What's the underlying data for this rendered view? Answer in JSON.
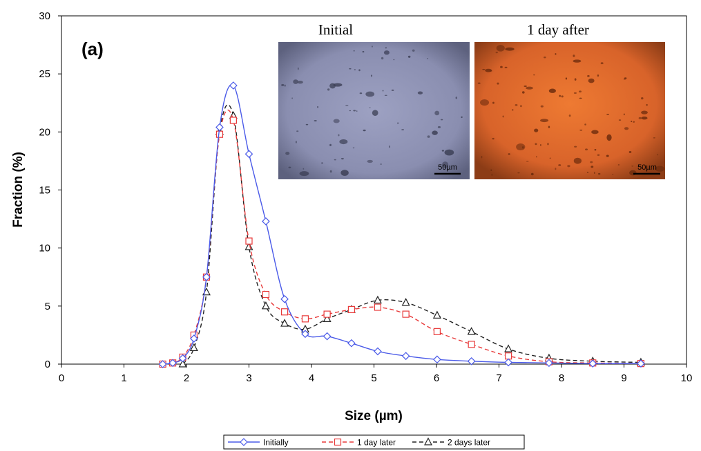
{
  "chart_data": {
    "type": "line",
    "panel_label": "(a)",
    "xlabel": "Size (µm)",
    "ylabel": "Fraction (%)",
    "xlim": [
      0,
      10
    ],
    "ylim": [
      0,
      30
    ],
    "xticks": [
      "0",
      "1",
      "2",
      "3",
      "4",
      "5",
      "6",
      "7",
      "8",
      "9",
      "10"
    ],
    "yticks": [
      "0",
      "5",
      "10",
      "15",
      "20",
      "25",
      "30"
    ],
    "grid": false,
    "legend_position": "bottom",
    "series": [
      {
        "name": "Initially",
        "color": "#4a5ae8",
        "marker": "diamond",
        "line": "solid",
        "x": [
          1.62,
          1.78,
          1.94,
          2.12,
          2.32,
          2.53,
          2.75,
          3.0,
          3.27,
          3.57,
          3.9,
          4.25,
          4.64,
          5.06,
          5.51,
          6.01,
          6.56,
          7.15,
          7.8,
          8.5,
          9.27
        ],
        "y": [
          0,
          0.1,
          0.5,
          2.2,
          7.5,
          20.4,
          24.0,
          18.1,
          12.3,
          5.6,
          2.6,
          2.4,
          1.8,
          1.1,
          0.7,
          0.4,
          0.25,
          0.15,
          0.1,
          0.05,
          0.05
        ]
      },
      {
        "name": "1 day later",
        "color": "#e83a3a",
        "marker": "square",
        "line": "dashed",
        "x": [
          1.62,
          1.78,
          1.94,
          2.12,
          2.32,
          2.53,
          2.75,
          3.0,
          3.27,
          3.57,
          3.9,
          4.25,
          4.64,
          5.06,
          5.51,
          6.01,
          6.56,
          7.15,
          7.8,
          8.5,
          9.27
        ],
        "y": [
          0,
          0.1,
          0.6,
          2.5,
          7.5,
          19.8,
          21.0,
          10.6,
          6.0,
          4.5,
          3.9,
          4.3,
          4.7,
          4.9,
          4.3,
          2.8,
          1.7,
          0.7,
          0.2,
          0.1,
          0.05
        ]
      },
      {
        "name": "2 days later",
        "color": "#222222",
        "marker": "triangle",
        "line": "dashed",
        "x": [
          1.94,
          2.12,
          2.32,
          2.53,
          2.75,
          3.0,
          3.27,
          3.57,
          3.9,
          4.25,
          4.64,
          5.06,
          5.51,
          6.01,
          6.56,
          7.15,
          7.8,
          8.5,
          9.27
        ],
        "y": [
          0,
          1.4,
          6.2,
          20.0,
          21.4,
          10.1,
          5.0,
          3.5,
          3.0,
          3.9,
          4.7,
          5.5,
          5.3,
          4.2,
          2.8,
          1.3,
          0.5,
          0.25,
          0.15
        ]
      }
    ],
    "insets": [
      {
        "title": "Initial",
        "scale_bar": "50µm",
        "tone": "#8e92b4"
      },
      {
        "title": "1 day after",
        "scale_bar": "50µm",
        "tone": "#de6a2a"
      }
    ]
  }
}
